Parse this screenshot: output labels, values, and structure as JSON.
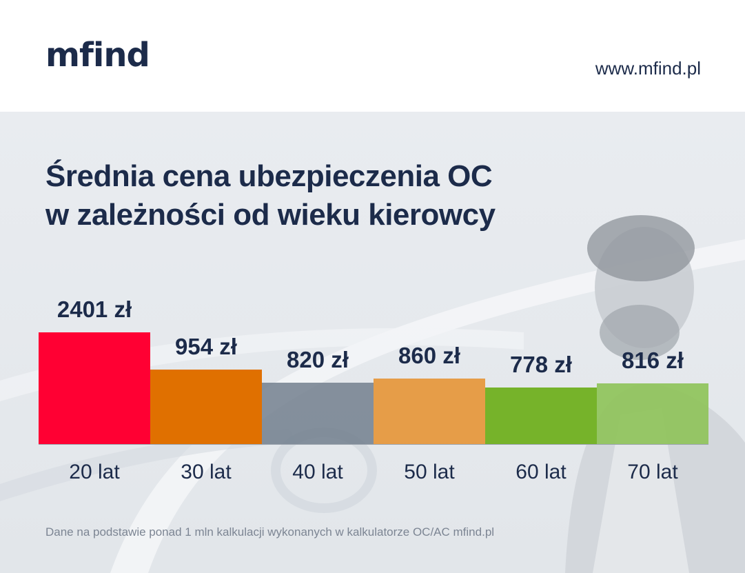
{
  "header": {
    "logo_text": "mfind",
    "site_url": "www.mfind.pl"
  },
  "title": {
    "line1": "Średnia cena ubezpieczenia OC",
    "line2": "w zależności od wieku kierowcy"
  },
  "footnote": "Dane na podstawie ponad 1 mln kalkulacji wykonanych w kalkulatorze OC/AC mfind.pl",
  "colors": {
    "brand": "#1c2b4a",
    "bar_20": "#ff0033",
    "bar_30": "#e07000",
    "bar_40": "#6e7b8a",
    "bar_50": "#e6963a",
    "bar_60": "#76b32a",
    "bar_70": "#8fc35a"
  },
  "chart_data": {
    "type": "bar",
    "categories": [
      "20 lat",
      "30 lat",
      "40 lat",
      "50 lat",
      "60 lat",
      "70 lat"
    ],
    "values": [
      2401,
      954,
      820,
      860,
      778,
      816
    ],
    "value_labels": [
      "2401 zł",
      "954 zł",
      "820 zł",
      "860 zł",
      "778 zł",
      "816 zł"
    ],
    "title": "Średnia cena ubezpieczenia OC w zależności od wieku kierowcy",
    "xlabel": "",
    "ylabel": "",
    "grid": false,
    "legend": "none"
  }
}
